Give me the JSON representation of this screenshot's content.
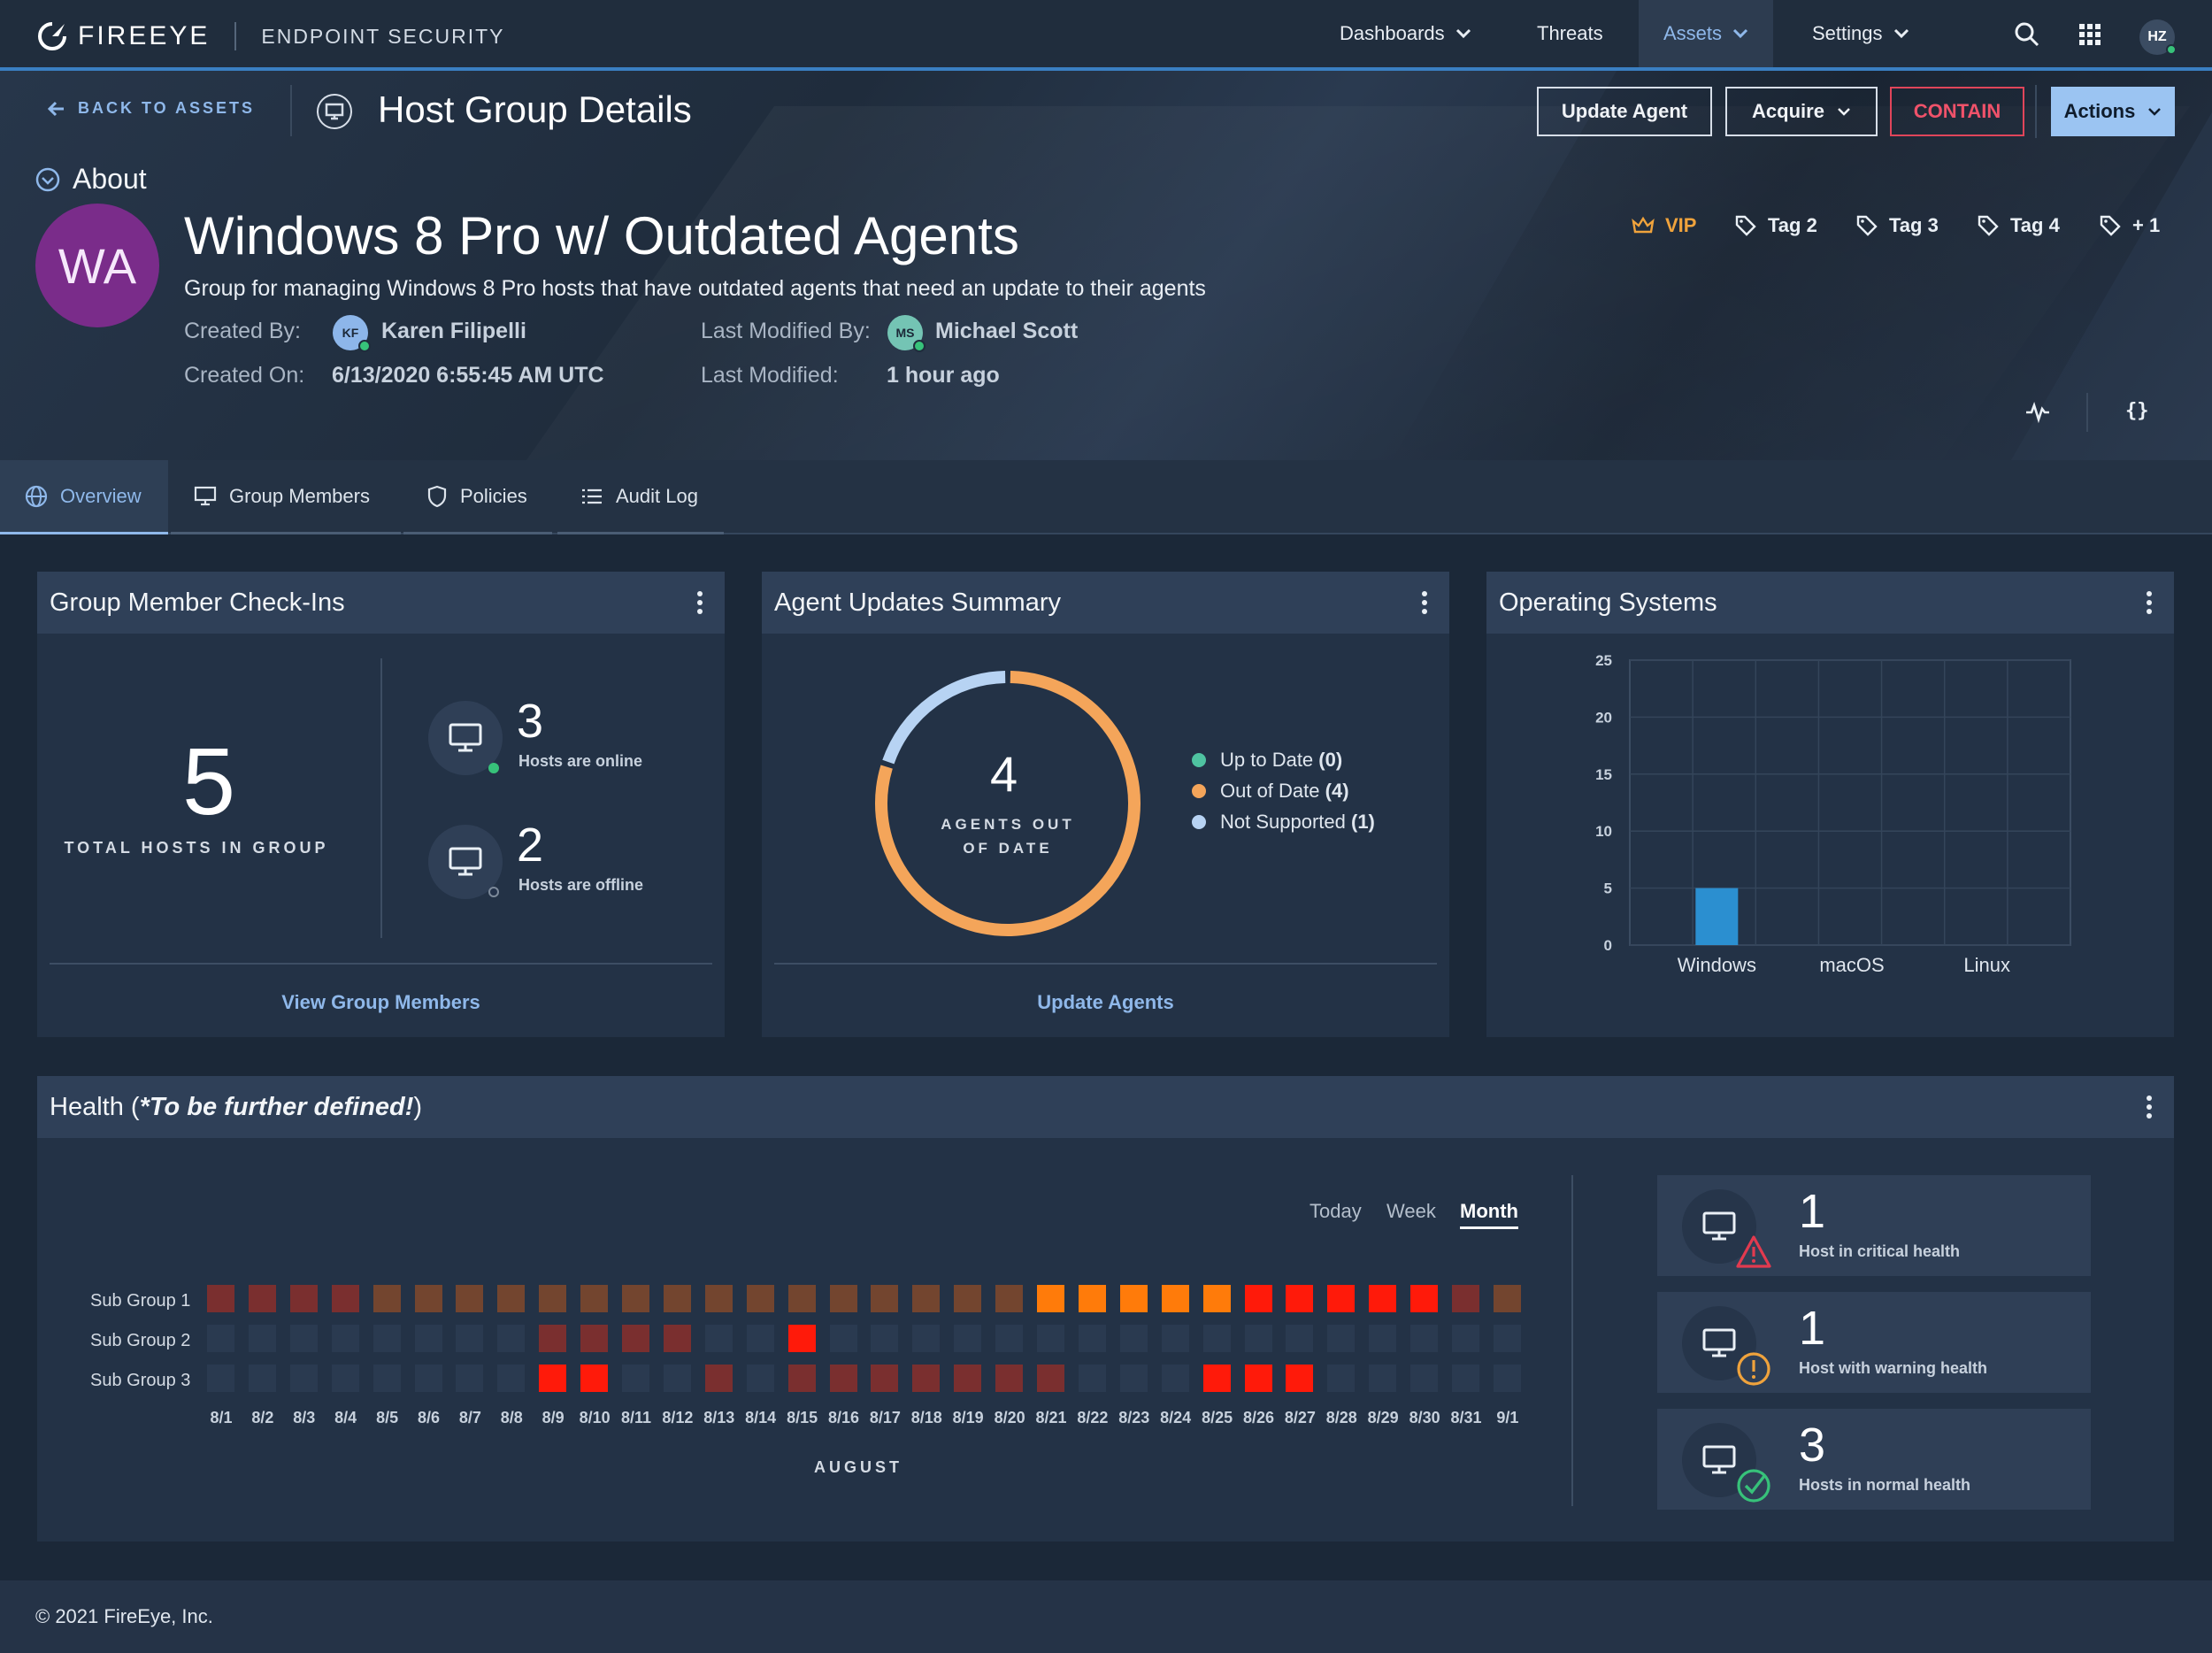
{
  "nav": {
    "brand": "FIREEYE",
    "product": "ENDPOINT SECURITY",
    "items": [
      {
        "label": "Dashboards",
        "has_menu": true,
        "active": false
      },
      {
        "label": "Threats",
        "has_menu": false,
        "active": false
      },
      {
        "label": "Assets",
        "has_menu": true,
        "active": true
      },
      {
        "label": "Settings",
        "has_menu": true,
        "active": false
      }
    ],
    "icons": [
      "search-icon",
      "apps-grid-icon"
    ],
    "user_initials": "HZ"
  },
  "header": {
    "back_label": "BACK TO ASSETS",
    "title": "Host Group Details",
    "buttons": {
      "update_agent": "Update Agent",
      "acquire": "Acquire",
      "contain": "CONTAIN",
      "actions": "Actions"
    }
  },
  "about": {
    "section_label": "About",
    "avatar_initials": "WA",
    "avatar_color": "#7a2c8a",
    "name": "Windows 8 Pro w/ Outdated Agents",
    "description": "Group for managing Windows 8 Pro hosts that have outdated agents that need an update to their agents",
    "created_by_label": "Created By:",
    "created_by_initials": "KF",
    "created_by": "Karen Filipelli",
    "created_on_label": "Created On:",
    "created_on": "6/13/2020 6:55:45 AM UTC",
    "modified_by_label": "Last Modified By:",
    "modified_by_initials": "MS",
    "modified_by": "Michael Scott",
    "modified_label": "Last Modified:",
    "modified": "1 hour ago",
    "tags": [
      "VIP",
      "Tag 2",
      "Tag 3",
      "Tag 4",
      "+ 1"
    ]
  },
  "tabs": [
    {
      "label": "Overview",
      "icon": "globe-icon",
      "active": true
    },
    {
      "label": "Group Members",
      "icon": "monitor-icon",
      "active": false
    },
    {
      "label": "Policies",
      "icon": "shield-icon",
      "active": false
    },
    {
      "label": "Audit Log",
      "icon": "list-icon",
      "active": false
    }
  ],
  "checkins": {
    "title": "Group Member Check-Ins",
    "total": "5",
    "total_label": "TOTAL HOSTS IN GROUP",
    "online_count": "3",
    "online_label": "Hosts are online",
    "offline_count": "2",
    "offline_label": "Hosts are offline",
    "link": "View Group Members"
  },
  "agent_updates": {
    "title": "Agent Updates Summary",
    "center_value": "4",
    "center_line1": "AGENTS OUT",
    "center_line2": "OF DATE",
    "legend": [
      {
        "label": "Up to Date",
        "count": "(0)",
        "value": 0,
        "color": "#4fc3a1"
      },
      {
        "label": "Out of Date",
        "count": "(4)",
        "value": 4,
        "color": "#f4a55a"
      },
      {
        "label": "Not Supported",
        "count": "(1)",
        "value": 1,
        "color": "#b7d3f3"
      }
    ],
    "link": "Update Agents"
  },
  "chart_data": {
    "type": "bar",
    "title": "Operating Systems",
    "categories": [
      "Windows",
      "macOS",
      "Linux"
    ],
    "values": [
      5,
      0,
      0
    ],
    "ylim": [
      0,
      25
    ],
    "yticks": [
      "0",
      "5",
      "10",
      "15",
      "20",
      "25"
    ],
    "grid": true,
    "bar_color": "#2b8fd0"
  },
  "health": {
    "title_prefix": "Health (",
    "title_emphasis": "*To be further defined!",
    "title_suffix": ")",
    "ranges": [
      "Today",
      "Week",
      "Month"
    ],
    "active_range": "Month",
    "rows": [
      "Sub Group 1",
      "Sub Group 2",
      "Sub Group 3"
    ],
    "days": [
      "8/1",
      "8/2",
      "8/3",
      "8/4",
      "8/5",
      "8/6",
      "8/7",
      "8/8",
      "8/9",
      "8/10",
      "8/11",
      "8/12",
      "8/13",
      "8/14",
      "8/15",
      "8/16",
      "8/17",
      "8/18",
      "8/19",
      "8/20",
      "8/21",
      "8/22",
      "8/23",
      "8/24",
      "8/25",
      "8/26",
      "8/27",
      "8/28",
      "8/29",
      "8/30",
      "8/31",
      "9/1"
    ],
    "month_label": "AUGUST",
    "levels": [
      [
        3,
        3,
        3,
        3,
        2,
        2,
        2,
        2,
        2,
        2,
        2,
        2,
        2,
        2,
        2,
        2,
        2,
        2,
        2,
        2,
        4,
        4,
        4,
        4,
        4,
        5,
        5,
        5,
        5,
        5,
        3,
        2
      ],
      [
        0,
        0,
        0,
        0,
        0,
        0,
        0,
        0,
        3,
        3,
        3,
        3,
        0,
        0,
        5,
        0,
        0,
        0,
        0,
        0,
        0,
        0,
        0,
        0,
        0,
        0,
        0,
        0,
        0,
        0,
        0,
        0
      ],
      [
        0,
        0,
        0,
        0,
        0,
        0,
        0,
        0,
        5,
        5,
        0,
        0,
        3,
        0,
        3,
        3,
        3,
        3,
        3,
        3,
        3,
        0,
        0,
        0,
        5,
        5,
        5,
        0,
        0,
        0,
        0,
        0
      ]
    ],
    "level_colors": [
      "#2a3a50",
      "#2a3a50",
      "#73452f",
      "#7a2f2f",
      "#ff7b0a",
      "#ff1a0a"
    ],
    "summary": [
      {
        "count": "1",
        "label": "Host in critical health",
        "badge": "warning-triangle-icon",
        "color": "#e23a4f"
      },
      {
        "count": "1",
        "label": "Host with warning health",
        "badge": "alert-circle-icon",
        "color": "#f0a33c"
      },
      {
        "count": "3",
        "label": "Hosts in normal health",
        "badge": "check-circle-icon",
        "color": "#37c27a"
      }
    ]
  },
  "footer": {
    "copyright": "© 2021 FireEye, Inc."
  }
}
